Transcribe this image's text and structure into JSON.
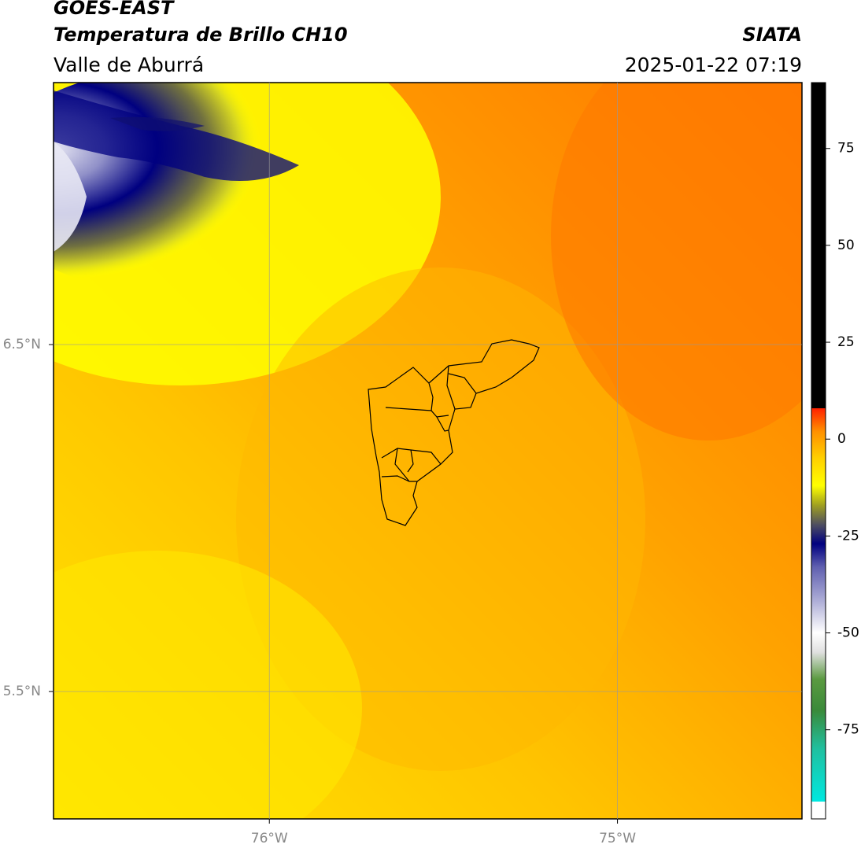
{
  "chart_data": {
    "type": "map",
    "title": "GOES-EAST",
    "subtitle": "Temperatura de Brillo CH10",
    "region": "Valle de Aburrá",
    "source": "SIATA",
    "datetime": "2025-01-22 07:19",
    "xlim": [
      -76.62,
      -74.47
    ],
    "ylim": [
      5.133,
      7.255
    ],
    "xticks": [
      {
        "value": -76,
        "label": "76°W"
      },
      {
        "value": -75,
        "label": "75°W"
      }
    ],
    "yticks": [
      {
        "value": 6.5,
        "label": "6.5°N"
      },
      {
        "value": 5.5,
        "label": "5.5°N"
      }
    ],
    "grid": true,
    "colorbar": {
      "lim": [
        -98,
        92
      ],
      "ticks": [
        75,
        50,
        25,
        0,
        -25,
        -50,
        -75
      ],
      "scale": [
        {
          "value": -98,
          "color": "#ffffff"
        },
        {
          "value": -93.5,
          "color": "#ffffff"
        },
        {
          "value": -93.5,
          "color": "#00e8e0"
        },
        {
          "value": -80,
          "color": "#20c0a0"
        },
        {
          "value": -70,
          "color": "#3a8a3a"
        },
        {
          "value": -62,
          "color": "#5a9a40"
        },
        {
          "value": -55,
          "color": "#e0e0e0"
        },
        {
          "value": -50,
          "color": "#ffffff"
        },
        {
          "value": -42,
          "color": "#b0b0d8"
        },
        {
          "value": -33,
          "color": "#6060b0"
        },
        {
          "value": -27,
          "color": "#000080"
        },
        {
          "value": -22,
          "color": "#505060"
        },
        {
          "value": -17,
          "color": "#a0a020"
        },
        {
          "value": -12,
          "color": "#ffff00"
        },
        {
          "value": -5,
          "color": "#ffd000"
        },
        {
          "value": 2,
          "color": "#ff9000"
        },
        {
          "value": 8,
          "color": "#ff2000"
        },
        {
          "value": 8,
          "color": "#000000"
        },
        {
          "value": 92,
          "color": "#000000"
        }
      ]
    }
  }
}
